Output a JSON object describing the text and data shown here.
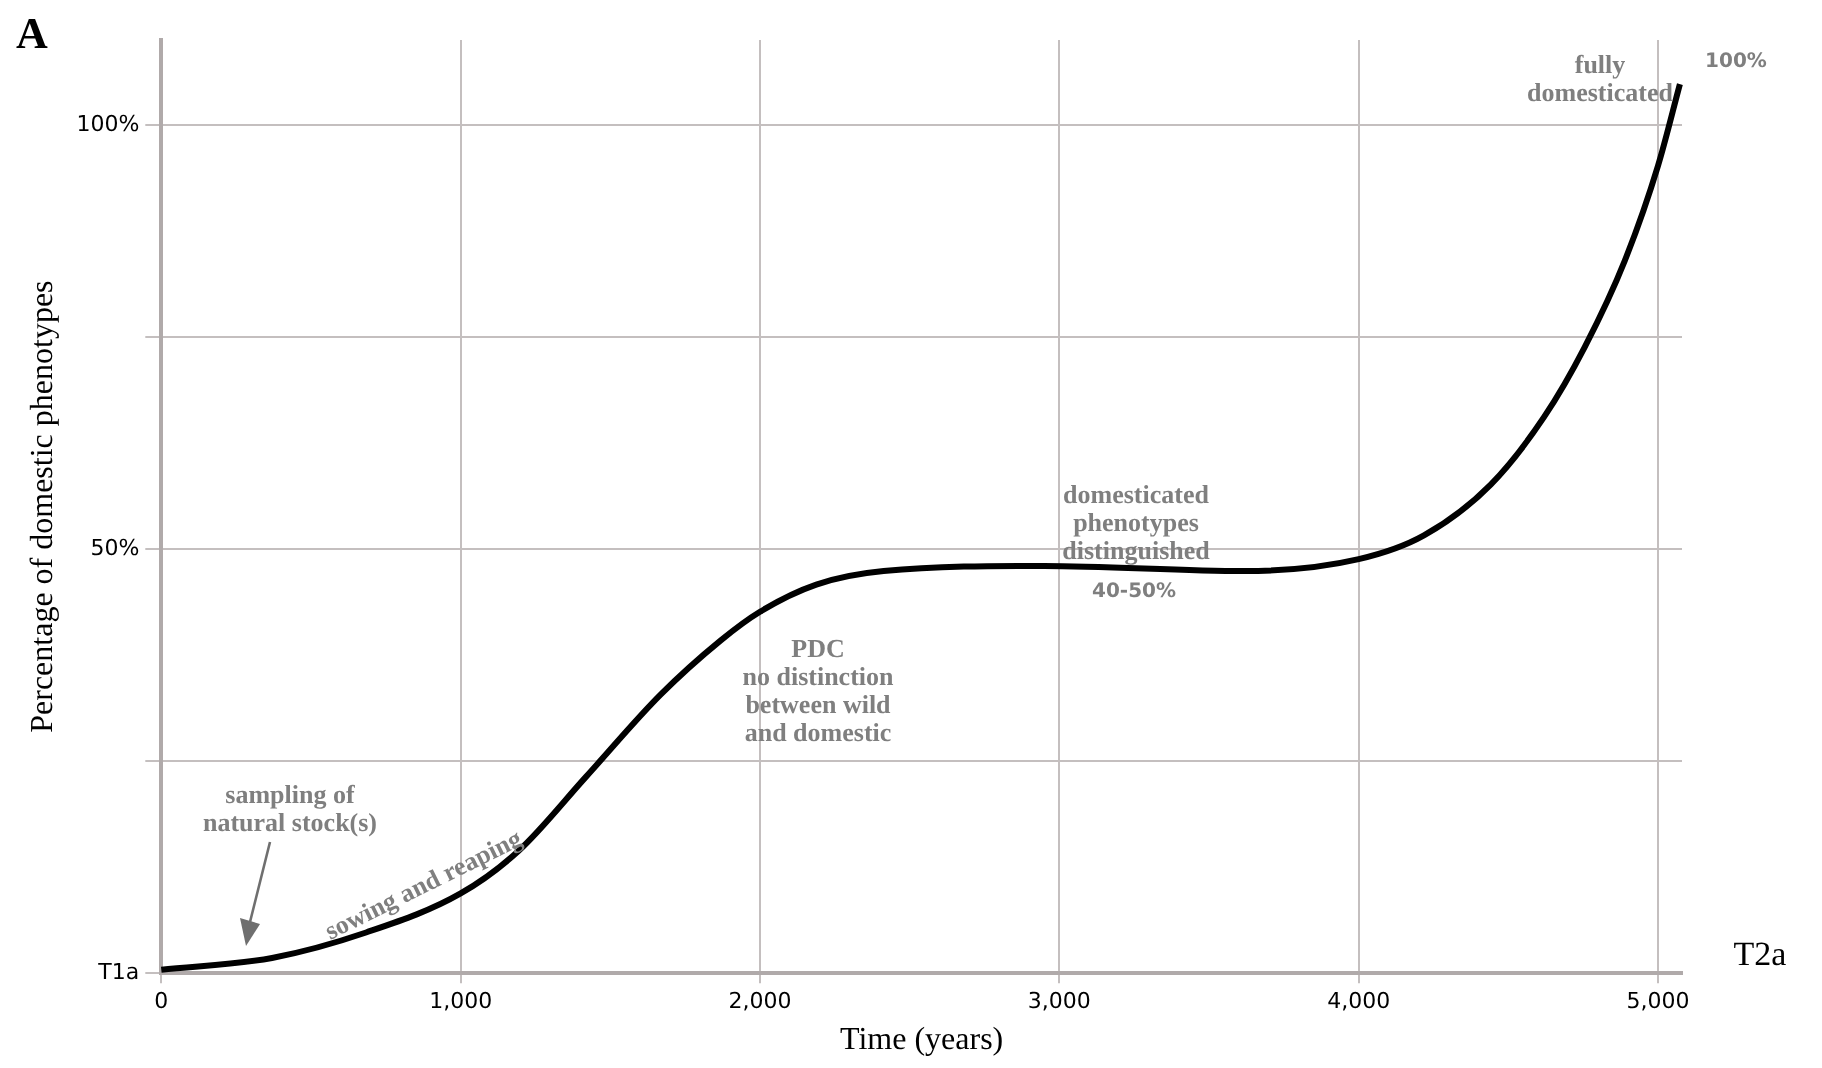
{
  "chart_data": {
    "type": "line",
    "title": "A",
    "xlabel": "Time (years)",
    "ylabel": "Percentage of domestic phenotypes",
    "xlim": [
      0,
      5080
    ],
    "xticks": [
      {
        "value": 0,
        "label": "0"
      },
      {
        "value": 1000,
        "label": "1,000"
      },
      {
        "value": 2000,
        "label": "2,000"
      },
      {
        "value": 3000,
        "label": "3,000"
      },
      {
        "value": 4000,
        "label": "4,000"
      },
      {
        "value": 5000,
        "label": "5,000"
      }
    ],
    "ylim": [
      0,
      110
    ],
    "yticks": [
      {
        "value": 0,
        "label": "T1a"
      },
      {
        "value": 25,
        "label": null
      },
      {
        "value": 50,
        "label": "50%"
      },
      {
        "value": 75,
        "label": null
      },
      {
        "value": 100,
        "label": "100%"
      }
    ],
    "grid": true,
    "legend": false,
    "marker": "none",
    "line_style": "solid",
    "series": [
      {
        "color": "#000000",
        "x": [
          0,
          370,
          684,
          1000,
          1193,
          1420,
          1667,
          1868,
          2000,
          2188,
          2413,
          2949,
          3617,
          4000,
          4218,
          4441,
          4620,
          4755,
          4889,
          5000,
          5073
        ],
        "values": [
          0.4,
          1.8,
          4.8,
          9.4,
          14.4,
          23.2,
          32.8,
          39.2,
          42.6,
          45.8,
          47.4,
          48,
          47.4,
          48.8,
          51.6,
          57.6,
          65.6,
          73.8,
          84,
          95.2,
          104.8
        ]
      }
    ],
    "annotations": [
      "sampling of\nnatural stock(s)",
      "sowing and reaping",
      "PDC\nno distinction\nbetween wild\nand domestic",
      "domesticated\nphenotypes\ndistinguished",
      "40-50%",
      "fully\ndomesticated",
      "100%",
      "T2a"
    ]
  }
}
